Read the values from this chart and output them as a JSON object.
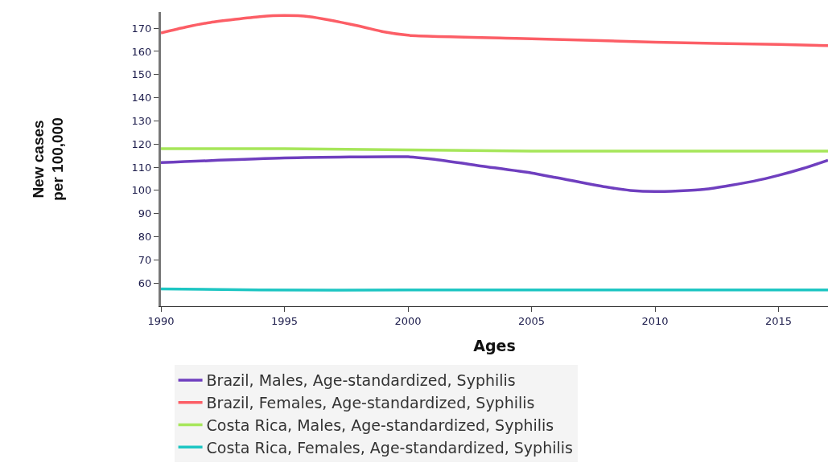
{
  "chart_data": {
    "type": "line",
    "xlabel": "Ages",
    "ylabel": "New cases\nper 100,000",
    "xlim": [
      1990,
      2017
    ],
    "xticks": [
      1990,
      1995,
      2000,
      2005,
      2010,
      2015
    ],
    "ylim": [
      50,
      177
    ],
    "yticks": [
      60,
      70,
      80,
      90,
      100,
      110,
      120,
      130,
      140,
      150,
      160,
      170
    ],
    "grid": false,
    "legend": "bottom",
    "marker": "none",
    "line_style": "solid",
    "series": [
      {
        "name": "Brazil, Males, Age-standardized, Syphilis",
        "color": "#6f3fbf",
        "x": [
          1990,
          1995,
          2000,
          2001,
          2003,
          2005,
          2006,
          2008,
          2009,
          2010,
          2012,
          2014,
          2015,
          2016,
          2017
        ],
        "values": [
          112,
          114,
          114.5,
          113.5,
          110.5,
          107.5,
          105.5,
          101.5,
          100,
          99.5,
          100.5,
          104,
          106.5,
          109.5,
          113
        ]
      },
      {
        "name": "Brazil, Females, Age-standardized, Syphilis",
        "color": "#fc5e66",
        "x": [
          1990,
          1991,
          1992,
          1994,
          1995,
          1996,
          1998,
          1999,
          2000,
          2005,
          2010,
          2015,
          2017
        ],
        "values": [
          168,
          170.5,
          172.5,
          175,
          175.5,
          175,
          171,
          168.5,
          167,
          165.5,
          164,
          163,
          162.5
        ]
      },
      {
        "name": "Costa Rica, Males, Age-standardized, Syphilis",
        "color": "#a6e65a",
        "x": [
          1990,
          1995,
          2000,
          2005,
          2010,
          2017
        ],
        "values": [
          118,
          118,
          117.5,
          117,
          117,
          117
        ]
      },
      {
        "name": "Costa Rica, Females, Age-standardized, Syphilis",
        "color": "#1fc6c3",
        "x": [
          1990,
          1994,
          2000,
          2010,
          2017
        ],
        "values": [
          57.5,
          57,
          57,
          57,
          57
        ]
      }
    ]
  }
}
